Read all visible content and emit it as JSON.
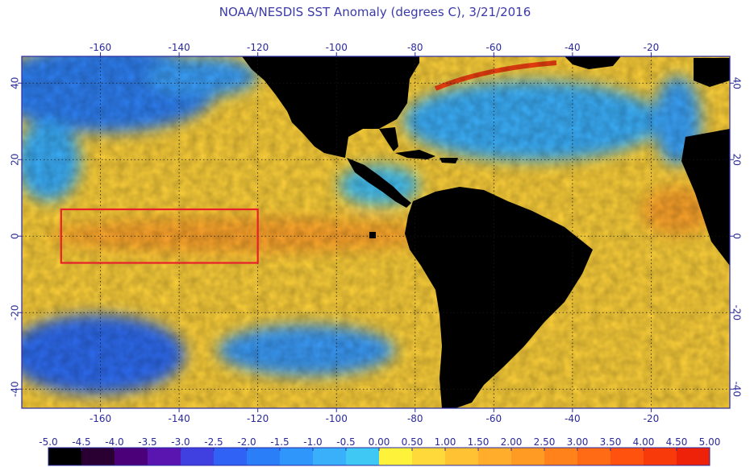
{
  "title": "NOAA/NESDIS SST Anomaly (degrees C), 3/21/2016",
  "map": {
    "lon_range": [
      -180,
      0
    ],
    "lat_range": [
      -45,
      47
    ],
    "lon_ticks": [
      -160,
      -140,
      -120,
      -100,
      -80,
      -60,
      -40,
      -20
    ],
    "lat_ticks": [
      40,
      20,
      0,
      -20,
      -40
    ],
    "grid": "dotted",
    "highlight_box": {
      "lon": [
        -170,
        -120
      ],
      "lat": [
        -7,
        7
      ],
      "color": "#e8202a"
    }
  },
  "colorbar": {
    "labels": [
      "-5.0",
      "-4.5",
      "-4.0",
      "-3.5",
      "-3.0",
      "-2.5",
      "-2.0",
      "-1.5",
      "-1.0",
      "-0.5",
      "0.00",
      "0.50",
      "1.00",
      "1.50",
      "2.00",
      "2.50",
      "3.00",
      "3.50",
      "4.00",
      "4.50",
      "5.00"
    ],
    "colors": [
      "#000000",
      "#2a0033",
      "#4b007a",
      "#5a14b0",
      "#4040e0",
      "#2f62f5",
      "#2a7ef8",
      "#2f96fb",
      "#3ab0fb",
      "#40c8f5",
      "#fff23a",
      "#ffd93a",
      "#ffc233",
      "#ffad2a",
      "#ff9a22",
      "#ff821a",
      "#ff6a14",
      "#ff520e",
      "#f83a0a",
      "#ee2208"
    ]
  }
}
